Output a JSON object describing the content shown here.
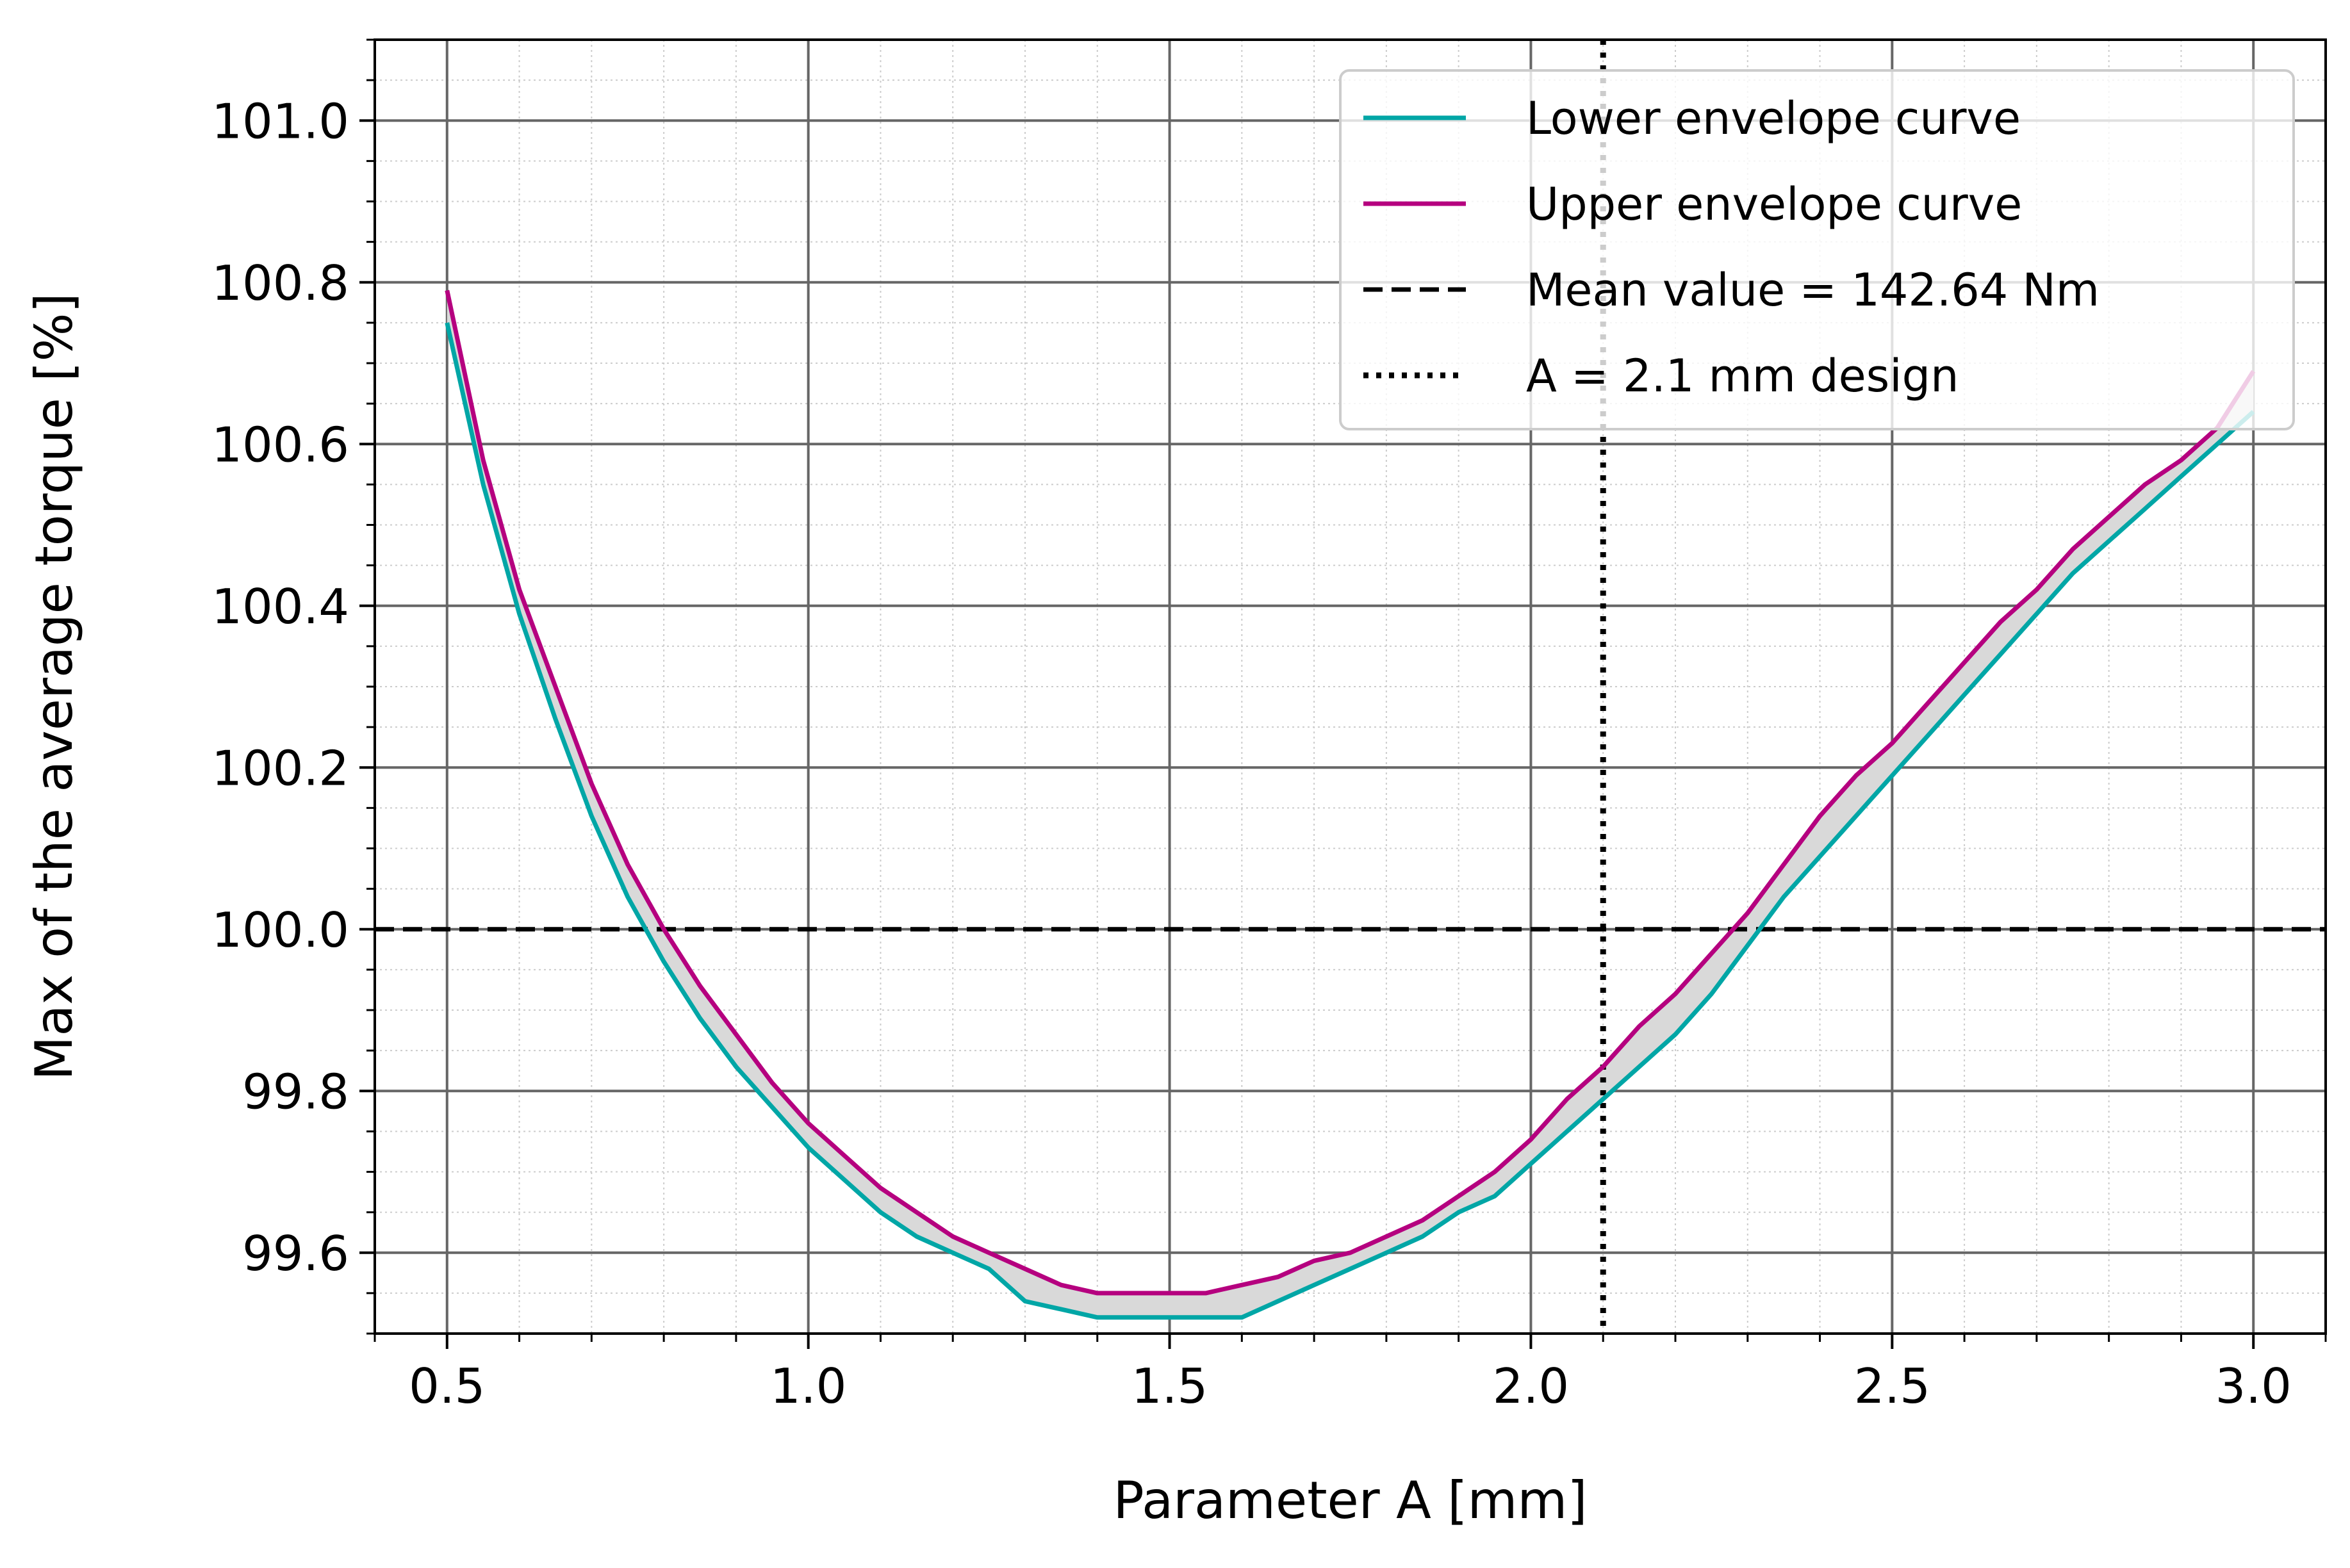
{
  "chart_data": {
    "type": "line",
    "title": "",
    "xlabel": "Parameter A [mm]",
    "ylabel": "Max of the average torque [%]",
    "xlim": [
      0.4,
      3.1
    ],
    "ylim": [
      99.5,
      101.1
    ],
    "xticks": [
      0.5,
      1.0,
      1.5,
      2.0,
      2.5,
      3.0
    ],
    "xtick_labels": [
      "0.5",
      "1.0",
      "1.5",
      "2.0",
      "2.5",
      "3.0"
    ],
    "yticks": [
      99.6,
      99.8,
      100.0,
      100.2,
      100.4,
      100.6,
      100.8,
      101.0
    ],
    "ytick_labels": [
      "99.6",
      "99.8",
      "100.0",
      "100.2",
      "100.4",
      "100.6",
      "100.8",
      "101.0"
    ],
    "grid": true,
    "minor_grid": true,
    "legend_position": "top-right",
    "fill_between": {
      "lower": "lower",
      "upper": "upper",
      "color": "#d9d9d9"
    },
    "series": [
      {
        "key": "lower",
        "name": "Lower envelope curve",
        "color": "#00a6a6",
        "style": "solid",
        "x": [
          0.5,
          0.55,
          0.6,
          0.65,
          0.7,
          0.75,
          0.8,
          0.85,
          0.9,
          0.95,
          1.0,
          1.05,
          1.1,
          1.15,
          1.2,
          1.25,
          1.3,
          1.35,
          1.4,
          1.45,
          1.5,
          1.55,
          1.6,
          1.65,
          1.7,
          1.75,
          1.8,
          1.85,
          1.9,
          1.95,
          2.0,
          2.05,
          2.1,
          2.15,
          2.2,
          2.25,
          2.3,
          2.35,
          2.4,
          2.45,
          2.5,
          2.55,
          2.6,
          2.65,
          2.7,
          2.75,
          2.8,
          2.85,
          2.9,
          2.95,
          3.0
        ],
        "y": [
          100.75,
          100.55,
          100.39,
          100.26,
          100.14,
          100.04,
          99.96,
          99.89,
          99.83,
          99.78,
          99.73,
          99.69,
          99.65,
          99.62,
          99.6,
          99.58,
          99.54,
          99.53,
          99.52,
          99.52,
          99.52,
          99.52,
          99.52,
          99.54,
          99.56,
          99.58,
          99.6,
          99.62,
          99.65,
          99.67,
          99.71,
          99.75,
          99.79,
          99.83,
          99.87,
          99.92,
          99.98,
          100.04,
          100.09,
          100.14,
          100.19,
          100.24,
          100.29,
          100.34,
          100.39,
          100.44,
          100.48,
          100.52,
          100.56,
          100.6,
          100.64
        ]
      },
      {
        "key": "upper",
        "name": "Upper envelope curve",
        "color": "#b5007f",
        "style": "solid",
        "x": [
          0.5,
          0.55,
          0.6,
          0.65,
          0.7,
          0.75,
          0.8,
          0.85,
          0.9,
          0.95,
          1.0,
          1.05,
          1.1,
          1.15,
          1.2,
          1.25,
          1.3,
          1.35,
          1.4,
          1.45,
          1.5,
          1.55,
          1.6,
          1.65,
          1.7,
          1.75,
          1.8,
          1.85,
          1.9,
          1.95,
          2.0,
          2.05,
          2.1,
          2.15,
          2.2,
          2.25,
          2.3,
          2.35,
          2.4,
          2.45,
          2.5,
          2.55,
          2.6,
          2.65,
          2.7,
          2.75,
          2.8,
          2.85,
          2.9,
          2.95,
          3.0
        ],
        "y": [
          100.79,
          100.58,
          100.42,
          100.3,
          100.18,
          100.08,
          100.0,
          99.93,
          99.87,
          99.81,
          99.76,
          99.72,
          99.68,
          99.65,
          99.62,
          99.6,
          99.58,
          99.56,
          99.55,
          99.55,
          99.55,
          99.55,
          99.56,
          99.57,
          99.59,
          99.6,
          99.62,
          99.64,
          99.67,
          99.7,
          99.74,
          99.79,
          99.83,
          99.88,
          99.92,
          99.97,
          100.02,
          100.08,
          100.14,
          100.19,
          100.23,
          100.28,
          100.33,
          100.38,
          100.42,
          100.47,
          100.51,
          100.55,
          100.58,
          100.62,
          100.69
        ]
      },
      {
        "key": "mean",
        "name": "Mean value = 142.64 Nm",
        "color": "#000000",
        "style": "dashed",
        "orientation": "horizontal",
        "value": 100.0
      },
      {
        "key": "design",
        "name": "A = 2.1 mm design",
        "color": "#000000",
        "style": "dotted",
        "orientation": "vertical",
        "value": 2.1
      }
    ]
  }
}
